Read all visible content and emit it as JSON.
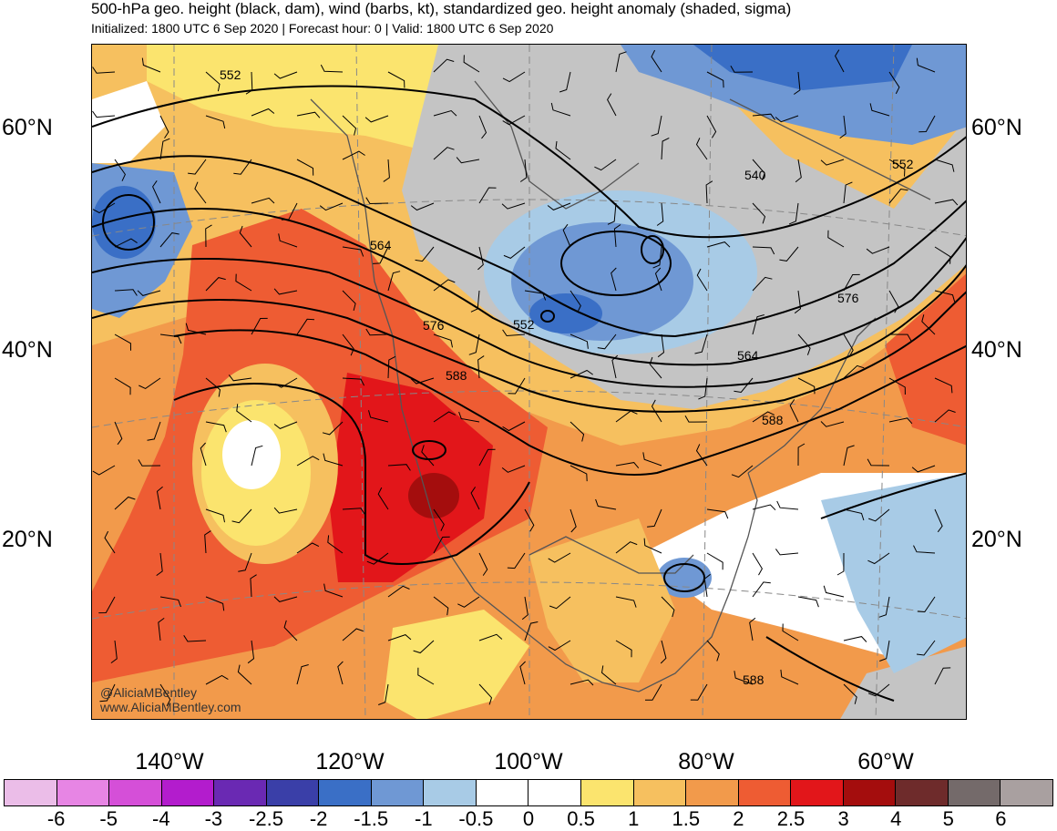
{
  "header": {
    "title": "500-hPa geo. height (black, dam), wind (barbs, kt), standardized geo. height anomaly (shaded, sigma)",
    "subtitle": "Initialized: 1800 UTC 6 Sep 2020 | Forecast hour: 0 | Valid: 1800 UTC 6 Sep 2020"
  },
  "map": {
    "lat_labels": [
      "60°N",
      "40°N",
      "20°N"
    ],
    "lon_labels": [
      "140°W",
      "120°W",
      "100°W",
      "80°W",
      "60°W"
    ],
    "contour_labels": [
      "552",
      "564",
      "576",
      "588",
      "552",
      "540",
      "552",
      "576",
      "564",
      "588",
      "588"
    ],
    "credit_handle": "@AliciaMBentley",
    "credit_url": "www.AliciaMBentley.com"
  },
  "colorbar": {
    "colors": [
      "#ebbde8",
      "#e785e4",
      "#d54fd8",
      "#b31ccd",
      "#6a29b3",
      "#3a3fa8",
      "#3a6fc6",
      "#6f98d4",
      "#a8cbe6",
      "#ffffff",
      "#ffffff",
      "#fbe46e",
      "#f6c05f",
      "#f29a4b",
      "#ee5c33",
      "#e2161a",
      "#a40d0d",
      "#6e2b2b",
      "#746a6a",
      "#a9a0a0"
    ],
    "ticks": [
      "-6",
      "-5",
      "-4",
      "-3",
      "-2.5",
      "-2",
      "-1.5",
      "-1",
      "-0.5",
      "0",
      "0.5",
      "1",
      "1.5",
      "2",
      "2.5",
      "3",
      "4",
      "5",
      "6"
    ]
  },
  "legend_colors": {
    "gray_land": "#c4c4c4",
    "light_blue": "#a8cbe6",
    "mid_blue": "#6f98d4",
    "dark_blue": "#3a6fc6",
    "yellow": "#fbe46e",
    "light_orange": "#f6c05f",
    "orange": "#f29a4b",
    "red_orange": "#ee5c33",
    "red": "#e2161a",
    "dark_red": "#a40d0d"
  }
}
